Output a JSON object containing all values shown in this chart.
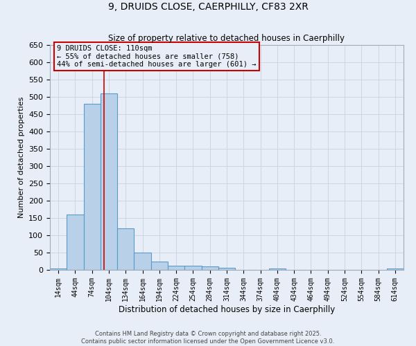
{
  "title_line1": "9, DRUIDS CLOSE, CAERPHILLY, CF83 2XR",
  "title_line2": "Size of property relative to detached houses in Caerphilly",
  "xlabel": "Distribution of detached houses by size in Caerphilly",
  "ylabel": "Number of detached properties",
  "bin_edges": [
    14,
    44,
    74,
    104,
    134,
    164,
    194,
    224,
    254,
    284,
    314,
    344,
    374,
    404,
    434,
    464,
    494,
    524,
    554,
    584,
    614
  ],
  "bar_heights": [
    5,
    160,
    480,
    510,
    120,
    50,
    25,
    13,
    13,
    10,
    7,
    0,
    0,
    5,
    0,
    0,
    0,
    0,
    0,
    0,
    5
  ],
  "bar_color": "#b8d0e8",
  "bar_edge_color": "#5a9ac8",
  "red_line_x": 110,
  "red_line_color": "#cc0000",
  "annotation_text": "9 DRUIDS CLOSE: 110sqm\n← 55% of detached houses are smaller (758)\n44% of semi-detached houses are larger (601) →",
  "annotation_box_color": "#cc0000",
  "ylim": [
    0,
    650
  ],
  "yticks": [
    0,
    50,
    100,
    150,
    200,
    250,
    300,
    350,
    400,
    450,
    500,
    550,
    600,
    650
  ],
  "footer_line1": "Contains HM Land Registry data © Crown copyright and database right 2025.",
  "footer_line2": "Contains public sector information licensed under the Open Government Licence v3.0.",
  "background_color": "#e8eef8",
  "grid_color": "#c8d2e0"
}
